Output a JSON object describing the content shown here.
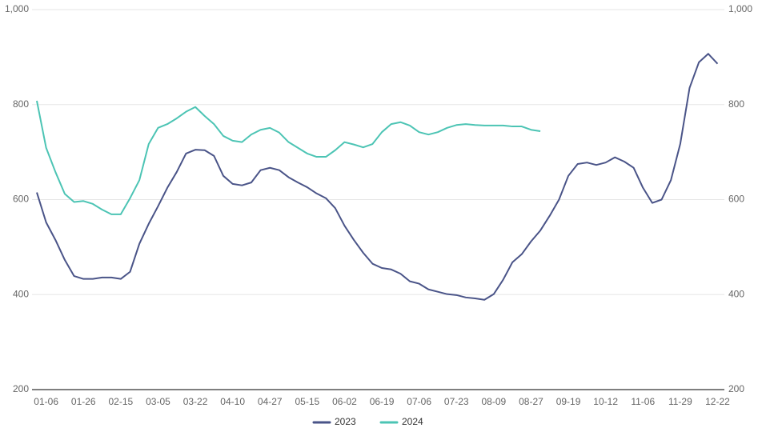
{
  "chart_data": {
    "type": "line",
    "categories": [
      null,
      "01-06",
      null,
      null,
      null,
      "01-26",
      null,
      null,
      null,
      "02-15",
      null,
      null,
      null,
      "03-05",
      null,
      null,
      null,
      "03-22",
      null,
      null,
      null,
      "04-10",
      null,
      null,
      null,
      "04-27",
      null,
      null,
      null,
      "05-15",
      null,
      null,
      null,
      "06-02",
      null,
      null,
      null,
      "06-19",
      null,
      null,
      null,
      "07-06",
      null,
      null,
      null,
      "07-23",
      null,
      null,
      null,
      "08-09",
      null,
      null,
      null,
      "08-27",
      null,
      null,
      null,
      "09-19",
      null,
      null,
      null,
      "10-12",
      null,
      null,
      null,
      "11-06",
      null,
      null,
      null,
      "11-29",
      null,
      null,
      null,
      "12-22"
    ],
    "series": [
      {
        "name": "2023",
        "color": "#4a5488",
        "values": [
          615,
          552,
          515,
          473,
          439,
          433,
          433,
          436,
          436,
          433,
          448,
          507,
          549,
          586,
          625,
          658,
          697,
          705,
          704,
          692,
          650,
          633,
          630,
          636,
          662,
          667,
          662,
          647,
          636,
          626,
          613,
          603,
          582,
          545,
          515,
          488,
          465,
          456,
          453,
          444,
          428,
          423,
          411,
          406,
          401,
          399,
          394,
          392,
          389,
          401,
          431,
          468,
          485,
          512,
          535,
          566,
          600,
          650,
          675,
          678,
          673,
          678,
          689,
          680,
          667,
          625,
          593,
          600,
          641,
          717,
          835,
          889,
          907,
          886
        ]
      },
      {
        "name": "2024",
        "color": "#4cc4b4",
        "values": [
          808,
          709,
          658,
          612,
          595,
          597,
          591,
          579,
          569,
          569,
          603,
          641,
          717,
          751,
          759,
          771,
          785,
          795,
          776,
          759,
          734,
          724,
          721,
          737,
          747,
          751,
          741,
          721,
          709,
          697,
          690,
          690,
          704,
          721,
          716,
          710,
          717,
          742,
          759,
          763,
          756,
          742,
          737,
          742,
          751,
          757,
          759,
          757,
          756,
          756,
          756,
          754,
          754,
          747,
          744,
          null,
          null,
          null,
          null,
          null,
          null,
          null,
          null,
          null,
          null,
          null,
          null,
          null,
          null,
          null,
          null,
          null,
          null,
          null
        ]
      }
    ],
    "ylim": [
      200,
      1000
    ],
    "yticks": [
      200,
      400,
      600,
      800,
      {
        "value": 1000,
        "label": "1,000"
      }
    ],
    "y2lim": [
      200,
      1000
    ],
    "y2ticks": [
      200,
      400,
      600,
      800,
      {
        "value": 1000,
        "label": "1,000"
      }
    ],
    "grid": true,
    "legend": "bottom"
  }
}
